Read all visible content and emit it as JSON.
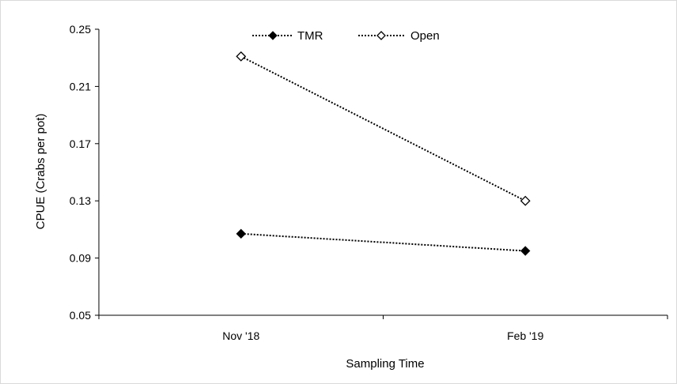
{
  "chart_data": {
    "type": "line",
    "title": "",
    "xlabel": "Sampling Time",
    "ylabel": "CPUE (Crabs per pot)",
    "categories": [
      "Nov '18",
      "Feb '19"
    ],
    "ylim": [
      0.05,
      0.25
    ],
    "yticks": [
      "0.25",
      "0.21",
      "0.17",
      "0.13",
      "0.09",
      "0.05"
    ],
    "grid": false,
    "legend_position": "top",
    "series": [
      {
        "name": "TMR",
        "values": [
          0.107,
          0.095
        ],
        "marker": "filled-diamond",
        "line_style": "dotted",
        "color": "#000000"
      },
      {
        "name": "Open",
        "values": [
          0.231,
          0.13
        ],
        "marker": "open-diamond",
        "line_style": "dotted",
        "color": "#000000"
      }
    ]
  }
}
